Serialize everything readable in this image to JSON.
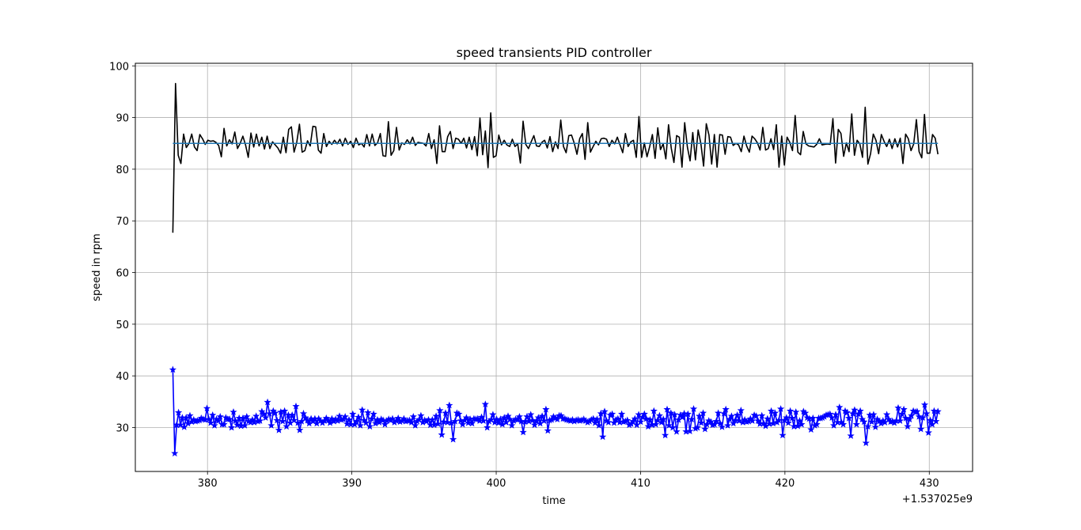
{
  "chart_data": {
    "type": "line",
    "title": "speed transients PID controller",
    "xlabel": "time",
    "ylabel": "speed in rpm",
    "x_offset_label": "+1.537025e9",
    "xlim": [
      375,
      433
    ],
    "ylim": [
      21.5,
      100.5
    ],
    "x_ticks": [
      380,
      390,
      400,
      410,
      420,
      430
    ],
    "y_ticks": [
      30,
      40,
      50,
      60,
      70,
      80,
      90,
      100
    ],
    "grid": true,
    "legend": "none",
    "x_start": 377.6,
    "x_end": 430.6,
    "setpoint": {
      "color": "#1f77b4",
      "y": 85
    },
    "series": [
      {
        "color": "#000000",
        "marker": "none",
        "values": [
          67.7,
          96.6,
          82.7,
          81.1,
          86.8,
          84.2,
          85.0,
          86.8,
          84.3,
          83.6,
          86.7,
          85.9,
          84.8,
          85.6,
          85.4,
          85.5,
          85.2,
          84.6,
          82.4,
          87.9,
          84.5,
          85.7,
          84.9,
          87.2,
          84.0,
          85.0,
          86.4,
          84.7,
          82.3,
          87.0,
          84.3,
          86.8,
          84.5,
          86.2,
          83.9,
          86.4,
          84.0,
          85.3,
          84.7,
          84.1,
          83.1,
          86.2,
          83.2,
          87.7,
          88.2,
          83.3,
          85.2,
          88.7,
          83.3,
          83.6,
          85.5,
          84.5,
          88.3,
          88.2,
          83.7,
          83.1,
          86.9,
          84.4,
          85.4,
          84.8,
          85.6,
          84.9,
          85.8,
          84.5,
          86.0,
          84.8,
          85.4,
          84.2,
          86.0,
          84.7,
          85.0,
          84.3,
          86.7,
          84.5,
          86.8,
          84.6,
          85.1,
          86.9,
          82.6,
          82.5,
          89.2,
          82.7,
          83.6,
          88.1,
          83.7,
          85.1,
          84.8,
          85.7,
          84.9,
          86.2,
          84.6,
          85.2,
          85.1,
          85.0,
          84.5,
          86.9,
          84.0,
          85.7,
          81.1,
          88.4,
          83.4,
          83.4,
          86.3,
          87.3,
          84.0,
          86.0,
          85.8,
          85.0,
          86.0,
          84.1,
          86.2,
          83.8,
          86.3,
          82.6,
          89.9,
          82.8,
          87.4,
          80.3,
          90.9,
          82.3,
          82.6,
          86.6,
          84.7,
          85.6,
          84.7,
          84.4,
          85.8,
          84.4,
          84.9,
          81.2,
          89.3,
          84.8,
          84.0,
          85.3,
          86.5,
          84.5,
          84.4,
          85.2,
          85.6,
          84.1,
          86.3,
          83.4,
          85.3,
          84.0,
          89.5,
          84.4,
          83.2,
          86.5,
          86.6,
          85.0,
          82.9,
          85.9,
          86.9,
          81.9,
          89.0,
          83.3,
          84.4,
          85.4,
          84.7,
          85.9,
          86.0,
          85.8,
          84.4,
          85.6,
          84.9,
          86.2,
          84.7,
          83.2,
          86.9,
          84.4,
          85.3,
          85.6,
          82.3,
          90.2,
          82.3,
          85.1,
          82.4,
          84.4,
          86.7,
          82.1,
          88.0,
          83.8,
          84.9,
          82.0,
          88.6,
          84.1,
          81.3,
          86.5,
          86.2,
          80.4,
          89.0,
          84.3,
          81.6,
          87.1,
          81.8,
          87.6,
          84.9,
          80.6,
          88.8,
          86.6,
          81.0,
          86.7,
          80.4,
          86.7,
          86.6,
          82.9,
          86.3,
          86.2,
          84.6,
          85.0,
          84.7,
          83.4,
          86.4,
          84.5,
          83.3,
          86.4,
          85.9,
          85.1,
          83.7,
          88.1,
          83.7,
          84.0,
          85.9,
          83.8,
          88.6,
          80.4,
          86.4,
          80.8,
          86.2,
          85.2,
          83.6,
          90.4,
          83.3,
          82.8,
          87.3,
          84.9,
          84.5,
          84.4,
          84.3,
          84.8,
          85.9,
          84.7,
          84.8,
          84.9,
          84.8,
          89.8,
          81.2,
          87.7,
          86.9,
          82.5,
          85.1,
          83.4,
          90.7,
          82.7,
          85.6,
          84.9,
          82.3,
          92.0,
          81.0,
          83.0,
          86.8,
          85.6,
          83.0,
          86.7,
          85.4,
          84.4,
          85.8,
          84.0,
          85.9,
          84.3,
          86.0,
          81.1,
          86.8,
          85.9,
          83.6,
          84.9,
          89.6,
          83.4,
          82.2,
          90.6,
          83.1,
          83.1,
          86.7,
          86.0,
          82.9
        ],
        "note_ignore": ""
      },
      {
        "color": "#0000ff",
        "marker": "star",
        "values": [
          41.2,
          25.0,
          30.5,
          32.9,
          30.5,
          31.9,
          30.1,
          31.9,
          30.8,
          32.3,
          31.1,
          31.5,
          31.2,
          31.3,
          31.4,
          31.8,
          31.6,
          31.5,
          33.7,
          31.6,
          30.9,
          32.4,
          30.4,
          31.6,
          31.3,
          32.1,
          30.6,
          30.6,
          31.9,
          31.6,
          31.6,
          30.0,
          33.0,
          31.3,
          30.5,
          31.8,
          30.3,
          31.8,
          30.4,
          32.1,
          31.2,
          31.0,
          31.5,
          31.0,
          32.2,
          31.2,
          31.3,
          33.1,
          32.6,
          31.9,
          34.9,
          32.7,
          30.4,
          33.2,
          32.8,
          31.4,
          29.5,
          33.0,
          31.2,
          33.2,
          30.2,
          32.4,
          30.9,
          32.4,
          31.4,
          34.1,
          30.9,
          29.5,
          31.2,
          32.7,
          31.9,
          31.4,
          30.8,
          31.7,
          31.2,
          31.7,
          30.8,
          31.7,
          31.3,
          30.9,
          31.3,
          31.8,
          31.4,
          30.9,
          31.7,
          31.2,
          31.6,
          31.3,
          32.2,
          31.5,
          31.6,
          32.1,
          30.7,
          31.5,
          30.6,
          32.6,
          30.6,
          31.2,
          32.0,
          30.4,
          33.4,
          31.4,
          30.9,
          32.9,
          30.2,
          31.7,
          32.6,
          30.8,
          31.5,
          31.0,
          31.6,
          31.4,
          30.6,
          31.3,
          31.6,
          31.4,
          31.7,
          31.0,
          31.3,
          31.8,
          31.1,
          31.3,
          31.7,
          31.2,
          31.3,
          31.4,
          31.0,
          32.1,
          30.4,
          31.2,
          31.5,
          32.3,
          31.0,
          31.4,
          31.2,
          31.5,
          30.5,
          31.5,
          30.5,
          32.2,
          30.7,
          33.3,
          28.6,
          31.1,
          32.8,
          31.0,
          34.3,
          30.9,
          27.7,
          31.2,
          32.8,
          32.6,
          31.3,
          30.6,
          31.4,
          31.9,
          30.9,
          31.6,
          30.8,
          31.7,
          31.6,
          31.7,
          31.3,
          32.0,
          31.3,
          34.5,
          30.0,
          31.2,
          31.5,
          32.5,
          31.0,
          31.6,
          30.9,
          31.6,
          30.6,
          31.9,
          31.0,
          32.2,
          31.6,
          30.4,
          31.3,
          31.6,
          31.5,
          32.1,
          31.2,
          29.1,
          31.1,
          32.1,
          31.2,
          32.5,
          31.4,
          30.5,
          31.2,
          31.9,
          30.8,
          32.2,
          31.3,
          33.5,
          29.4,
          31.4,
          31.5,
          32.1,
          31.8,
          31.6,
          32.3,
          32.3,
          31.7,
          31.7,
          31.5,
          31.4,
          31.3,
          31.5,
          31.2,
          31.4,
          31.5,
          31.3,
          31.4,
          31.6,
          31.3,
          31.0,
          31.2,
          31.5,
          31.7,
          30.9,
          31.6,
          30.4,
          32.7,
          28.2,
          33.1,
          31.3,
          31.0,
          32.4,
          32.6,
          30.9,
          31.5,
          31.7,
          31.0,
          32.6,
          31.1,
          31.2,
          31.4,
          30.5,
          30.7,
          31.2,
          31.7,
          30.5,
          32.5,
          31.1,
          32.0,
          32.6,
          31.7,
          30.2,
          31.5,
          30.5,
          33.2,
          30.6,
          31.4,
          32.3,
          31.0,
          31.6,
          28.5,
          33.5,
          30.4,
          32.8,
          30.0,
          32.5,
          29.2,
          31.5,
          32.4,
          32.0,
          32.7,
          29.2,
          32.6,
          29.3,
          31.6,
          33.6,
          29.8,
          30.0,
          32.2,
          30.9,
          32.8,
          29.7,
          30.6,
          31.3,
          31.1,
          30.5,
          30.6,
          31.2,
          32.8,
          30.8,
          30.1,
          32.7,
          33.5,
          30.4,
          31.6,
          32.2,
          30.8,
          31.4,
          32.4,
          31.3,
          33.3,
          31.0,
          31.5,
          31.1,
          31.2,
          31.7,
          31.3,
          32.4,
          32.2,
          31.3,
          30.7,
          32.3,
          30.8,
          30.3,
          31.7,
          30.7,
          33.2,
          30.8,
          32.8,
          31.0,
          31.4,
          33.6,
          28.5,
          31.4,
          31.9,
          30.9,
          33.2,
          31.8,
          30.2,
          33.0,
          30.3,
          31.3,
          30.6,
          33.1,
          32.8,
          31.9,
          31.7,
          29.6,
          31.8,
          30.4,
          30.6,
          31.8,
          31.8,
          31.9,
          32.1,
          32.4,
          32.5,
          32.6,
          31.9,
          30.4,
          32.5,
          31.0,
          33.9,
          31.0,
          30.6,
          33.2,
          32.9,
          31.8,
          28.4,
          32.7,
          33.4,
          30.6,
          32.6,
          33.2,
          31.6,
          31.1,
          27.0,
          30.2,
          32.4,
          31.1,
          32.5,
          30.1,
          31.6,
          31.2,
          30.8,
          31.3,
          31.0,
          32.5,
          31.6,
          31.1,
          31.2,
          30.9,
          31.3,
          33.8,
          31.3,
          32.6,
          33.5,
          31.8,
          30.2,
          31.6,
          32.3,
          33.2,
          33.0,
          33.1,
          32.1,
          29.7,
          31.9,
          34.4,
          32.7,
          29.0,
          31.4,
          30.6,
          33.2,
          31.2,
          33.1
        ]
      }
    ]
  }
}
